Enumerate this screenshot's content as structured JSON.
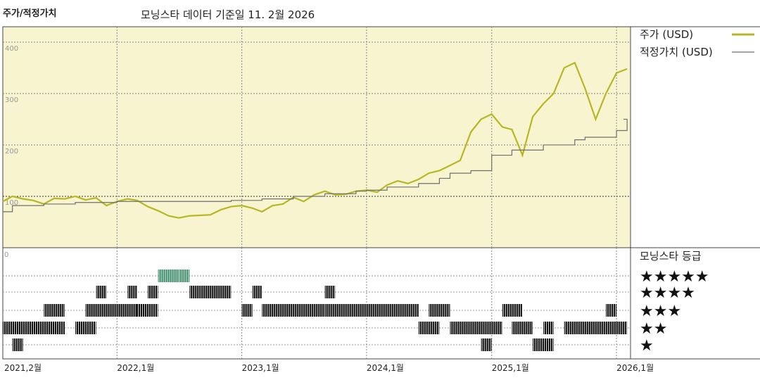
{
  "header": {
    "title": "주가/적정가치",
    "subtitle": "모닝스타 데이터 기준일 11. 2월 2026"
  },
  "colors": {
    "price": "#b7b726",
    "fair": "#6f6f6f",
    "plot_bg": "#f7f4cf",
    "rating_5": "#3e8b6a",
    "rating_other": "#111111"
  },
  "chart_data": {
    "type": "line",
    "x_ticks": [
      "2021,2월",
      "2022,1월",
      "2023,1월",
      "2024,1월",
      "2025,1월",
      "2026,1월"
    ],
    "y_ticks": [
      "100",
      "200",
      "300",
      "400"
    ],
    "ylim": [
      0,
      430
    ],
    "legend": {
      "price": "주가 (USD)",
      "fair": "적정가치 (USD)"
    },
    "series": [
      {
        "name": "주가 (USD)",
        "points": [
          [
            "2021-02",
            90
          ],
          [
            "2021-03",
            100
          ],
          [
            "2021-04",
            95
          ],
          [
            "2021-05",
            92
          ],
          [
            "2021-06",
            85
          ],
          [
            "2021-07",
            96
          ],
          [
            "2021-08",
            95
          ],
          [
            "2021-09",
            100
          ],
          [
            "2021-10",
            93
          ],
          [
            "2021-11",
            97
          ],
          [
            "2021-12",
            82
          ],
          [
            "2022-01",
            90
          ],
          [
            "2022-02",
            95
          ],
          [
            "2022-03",
            92
          ],
          [
            "2022-04",
            80
          ],
          [
            "2022-05",
            72
          ],
          [
            "2022-06",
            62
          ],
          [
            "2022-07",
            58
          ],
          [
            "2022-08",
            62
          ],
          [
            "2022-09",
            63
          ],
          [
            "2022-10",
            64
          ],
          [
            "2022-11",
            74
          ],
          [
            "2022-12",
            80
          ],
          [
            "2023-01",
            82
          ],
          [
            "2023-02",
            77
          ],
          [
            "2023-03",
            70
          ],
          [
            "2023-04",
            82
          ],
          [
            "2023-05",
            85
          ],
          [
            "2023-06",
            98
          ],
          [
            "2023-07",
            90
          ],
          [
            "2023-08",
            103
          ],
          [
            "2023-09",
            110
          ],
          [
            "2023-10",
            103
          ],
          [
            "2023-11",
            104
          ],
          [
            "2023-12",
            110
          ],
          [
            "2024-01",
            112
          ],
          [
            "2024-02",
            108
          ],
          [
            "2024-03",
            122
          ],
          [
            "2024-04",
            130
          ],
          [
            "2024-05",
            125
          ],
          [
            "2024-06",
            133
          ],
          [
            "2024-07",
            145
          ],
          [
            "2024-08",
            150
          ],
          [
            "2024-09",
            160
          ],
          [
            "2024-10",
            170
          ],
          [
            "2024-11",
            225
          ],
          [
            "2024-12",
            250
          ],
          [
            "2025-01",
            260
          ],
          [
            "2025-02",
            235
          ],
          [
            "2025-03",
            230
          ],
          [
            "2025-04",
            180
          ],
          [
            "2025-05",
            255
          ],
          [
            "2025-06",
            280
          ],
          [
            "2025-07",
            300
          ],
          [
            "2025-08",
            350
          ],
          [
            "2025-09",
            360
          ],
          [
            "2025-10",
            310
          ],
          [
            "2025-11",
            250
          ],
          [
            "2025-12",
            300
          ],
          [
            "2026-01",
            340
          ],
          [
            "2026-02",
            348
          ]
        ]
      },
      {
        "name": "적정가치 (USD)",
        "points": [
          [
            "2021-02",
            70
          ],
          [
            "2021-03",
            82
          ],
          [
            "2021-06",
            85
          ],
          [
            "2021-09",
            88
          ],
          [
            "2022-01",
            90
          ],
          [
            "2022-06",
            90
          ],
          [
            "2022-12",
            92
          ],
          [
            "2023-03",
            95
          ],
          [
            "2023-06",
            100
          ],
          [
            "2023-09",
            105
          ],
          [
            "2023-12",
            110
          ],
          [
            "2024-01",
            112
          ],
          [
            "2024-03",
            118
          ],
          [
            "2024-06",
            125
          ],
          [
            "2024-08",
            135
          ],
          [
            "2024-09",
            145
          ],
          [
            "2024-11",
            150
          ],
          [
            "2025-01",
            180
          ],
          [
            "2025-03",
            190
          ],
          [
            "2025-06",
            200
          ],
          [
            "2025-09",
            210
          ],
          [
            "2025-10",
            215
          ],
          [
            "2026-01",
            228
          ],
          [
            "2026-02",
            250
          ]
        ]
      }
    ],
    "rating_panel": {
      "title": "모닝스타 등급",
      "y_tick": "0",
      "rows": [
        "★★★★★",
        "★★★★",
        "★★★",
        "★★",
        "★"
      ],
      "segments": [
        {
          "stars": 5,
          "from": "2022-05",
          "to": "2022-07"
        },
        {
          "stars": 5,
          "from": "2022-07",
          "to": "2022-08"
        },
        {
          "stars": 4,
          "from": "2021-11",
          "to": "2021-12"
        },
        {
          "stars": 4,
          "from": "2022-02",
          "to": "2022-03"
        },
        {
          "stars": 4,
          "from": "2022-04",
          "to": "2022-05"
        },
        {
          "stars": 4,
          "from": "2022-08",
          "to": "2022-09"
        },
        {
          "stars": 4,
          "from": "2022-09",
          "to": "2022-12"
        },
        {
          "stars": 4,
          "from": "2023-02",
          "to": "2023-03"
        },
        {
          "stars": 4,
          "from": "2023-09",
          "to": "2023-10"
        },
        {
          "stars": 3,
          "from": "2021-06",
          "to": "2021-08"
        },
        {
          "stars": 3,
          "from": "2021-10",
          "to": "2022-03"
        },
        {
          "stars": 3,
          "from": "2022-03",
          "to": "2022-05"
        },
        {
          "stars": 3,
          "from": "2023-01",
          "to": "2023-02"
        },
        {
          "stars": 3,
          "from": "2023-03",
          "to": "2023-09"
        },
        {
          "stars": 3,
          "from": "2023-09",
          "to": "2024-06"
        },
        {
          "stars": 3,
          "from": "2024-07",
          "to": "2024-09"
        },
        {
          "stars": 3,
          "from": "2025-02",
          "to": "2025-04"
        },
        {
          "stars": 3,
          "from": "2025-12",
          "to": "2026-01"
        },
        {
          "stars": 2,
          "from": "2021-02",
          "to": "2021-08"
        },
        {
          "stars": 2,
          "from": "2021-09",
          "to": "2021-11"
        },
        {
          "stars": 2,
          "from": "2024-06",
          "to": "2024-08"
        },
        {
          "stars": 2,
          "from": "2024-09",
          "to": "2025-02"
        },
        {
          "stars": 2,
          "from": "2025-03",
          "to": "2025-05"
        },
        {
          "stars": 2,
          "from": "2025-06",
          "to": "2025-07"
        },
        {
          "stars": 2,
          "from": "2025-08",
          "to": "2026-02"
        },
        {
          "stars": 1,
          "from": "2021-03",
          "to": "2021-04"
        },
        {
          "stars": 1,
          "from": "2024-12",
          "to": "2025-01"
        },
        {
          "stars": 1,
          "from": "2025-05",
          "to": "2025-07"
        }
      ]
    }
  }
}
